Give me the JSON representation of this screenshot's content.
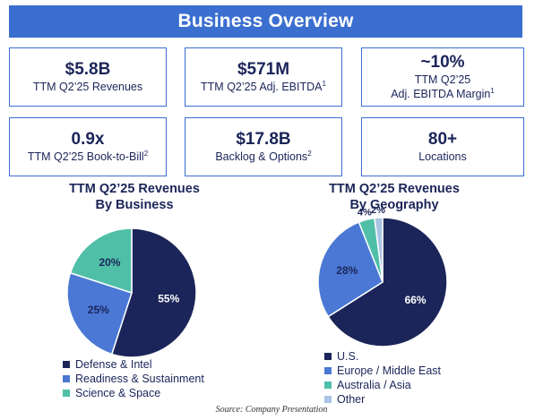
{
  "header": {
    "title": "Business Overview"
  },
  "kpis": [
    {
      "value": "$5.8B",
      "label": "TTM Q2’25 Revenues",
      "sup": ""
    },
    {
      "value": "$571M",
      "label": "TTM Q2’25 Adj. EBITDA",
      "sup": "1"
    },
    {
      "value": "~10%",
      "label": "TTM Q2’25",
      "label2": "Adj. EBITDA Margin",
      "sup": "1"
    },
    {
      "value": "0.9x",
      "label": "TTM Q2’25 Book-to-Bill",
      "sup": "2"
    },
    {
      "value": "$17.8B",
      "label": "Backlog & Options",
      "sup": "2"
    },
    {
      "value": "80+",
      "label": "Locations",
      "sup": ""
    }
  ],
  "chart_data": [
    {
      "type": "pie",
      "title": "TTM Q2’25 Revenues",
      "subtitle": "By Business",
      "categories": [
        "Defense & Intel",
        "Readiness & Sustainment",
        "Science & Space"
      ],
      "values": [
        55,
        25,
        20
      ],
      "value_labels": [
        "55%",
        "25%",
        "20%"
      ],
      "colors": [
        "#1b2559",
        "#4a78d4",
        "#4fbfa8"
      ],
      "legend": "bottom"
    },
    {
      "type": "pie",
      "title": "TTM Q2’25 Revenues",
      "subtitle": "By Geography",
      "categories": [
        "U.S.",
        "Europe / Middle East",
        "Australia / Asia",
        "Other"
      ],
      "values": [
        66,
        28,
        4,
        2
      ],
      "value_labels": [
        "66%",
        "28%",
        "4%",
        "2%"
      ],
      "colors": [
        "#1b2559",
        "#4a78d4",
        "#4fbfa8",
        "#a9c4e4"
      ],
      "legend": "bottom"
    }
  ],
  "footer": {
    "source": "Source: Company Presentation"
  }
}
